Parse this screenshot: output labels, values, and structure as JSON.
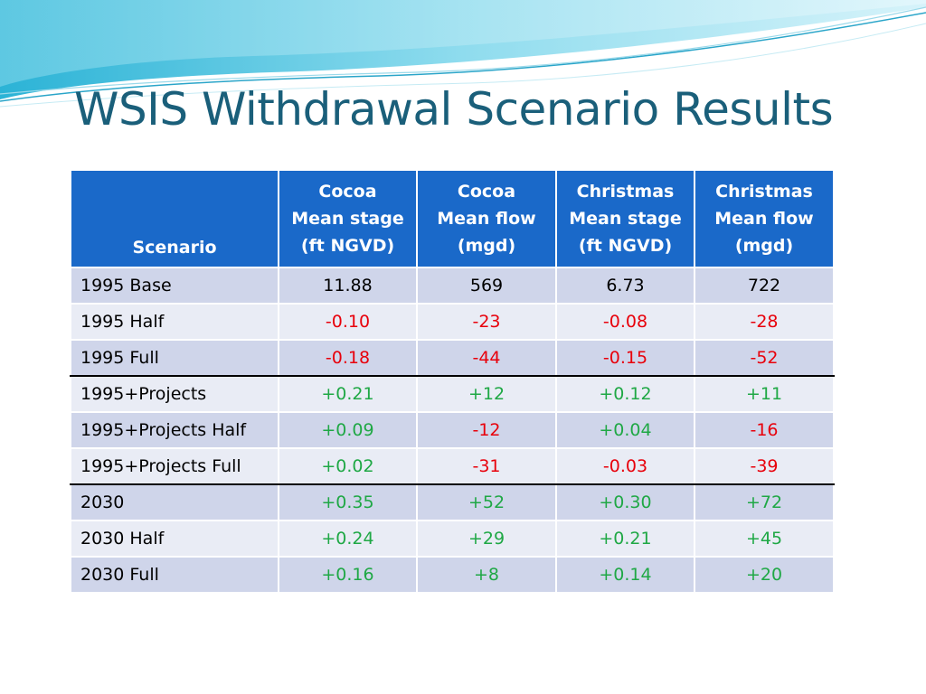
{
  "slide": {
    "title": "WSIS Withdrawal Scenario Results",
    "accent_color": "#1a5f7a",
    "header_color": "#1a69c9",
    "negative_color": "#e8000b",
    "positive_color": "#1fa845"
  },
  "table": {
    "headers": {
      "scenario": "Scenario",
      "cocoa_stage": [
        "Cocoa",
        "Mean stage",
        "(ft NGVD)"
      ],
      "cocoa_flow": [
        "Cocoa",
        "Mean flow",
        "(mgd)"
      ],
      "christmas_stage": [
        "Christmas",
        "Mean stage",
        "(ft NGVD)"
      ],
      "christmas_flow": [
        "Christmas",
        "Mean flow",
        "(mgd)"
      ]
    },
    "rows": [
      {
        "scenario": "1995 Base",
        "values": [
          "11.88",
          "569",
          "6.73",
          "722"
        ]
      },
      {
        "scenario": "1995 Half",
        "values": [
          "-0.10",
          "-23",
          "-0.08",
          "-28"
        ]
      },
      {
        "scenario": "1995 Full",
        "values": [
          "-0.18",
          "-44",
          "-0.15",
          "-52"
        ]
      },
      {
        "scenario": "1995+Projects",
        "values": [
          "+0.21",
          "+12",
          "+0.12",
          "+11"
        ]
      },
      {
        "scenario": "1995+Projects Half",
        "values": [
          "+0.09",
          "-12",
          "+0.04",
          "-16"
        ]
      },
      {
        "scenario": "1995+Projects Full",
        "values": [
          "+0.02",
          "-31",
          "-0.03",
          "-39"
        ]
      },
      {
        "scenario": "2030",
        "values": [
          "+0.35",
          "+52",
          "+0.30",
          "+72"
        ]
      },
      {
        "scenario": "2030 Half",
        "values": [
          "+0.24",
          "+29",
          "+0.21",
          "+45"
        ]
      },
      {
        "scenario": "2030 Full",
        "values": [
          "+0.16",
          "+8",
          "+0.14",
          "+20"
        ]
      }
    ]
  }
}
